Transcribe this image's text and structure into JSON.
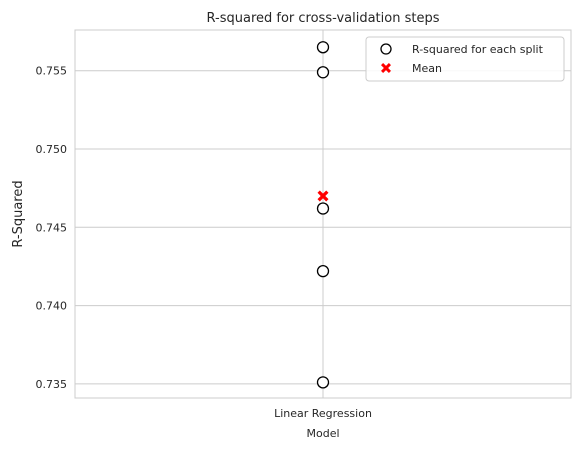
{
  "chart_data": {
    "type": "scatter",
    "title": "R-squared for cross-validation steps",
    "xlabel": "Model",
    "ylabel": "R-Squared",
    "categories": [
      "Linear Regression"
    ],
    "ylim": [
      0.7341,
      0.7576
    ],
    "yticks": [
      0.735,
      0.74,
      0.745,
      0.75,
      0.755
    ],
    "ytick_labels": [
      "0.735",
      "0.740",
      "0.745",
      "0.750",
      "0.755"
    ],
    "grid": true,
    "legend_position": "top-right",
    "series": [
      {
        "name": "R-squared for each split",
        "marker": "open-circle",
        "color": "#000000",
        "points": [
          {
            "category": "Linear Regression",
            "y": 0.7565
          },
          {
            "category": "Linear Regression",
            "y": 0.7549
          },
          {
            "category": "Linear Regression",
            "y": 0.7462
          },
          {
            "category": "Linear Regression",
            "y": 0.7422
          },
          {
            "category": "Linear Regression",
            "y": 0.7351
          }
        ]
      },
      {
        "name": "Mean",
        "marker": "x-filled",
        "color": "#ff0000",
        "points": [
          {
            "category": "Linear Regression",
            "y": 0.747
          }
        ]
      }
    ]
  }
}
